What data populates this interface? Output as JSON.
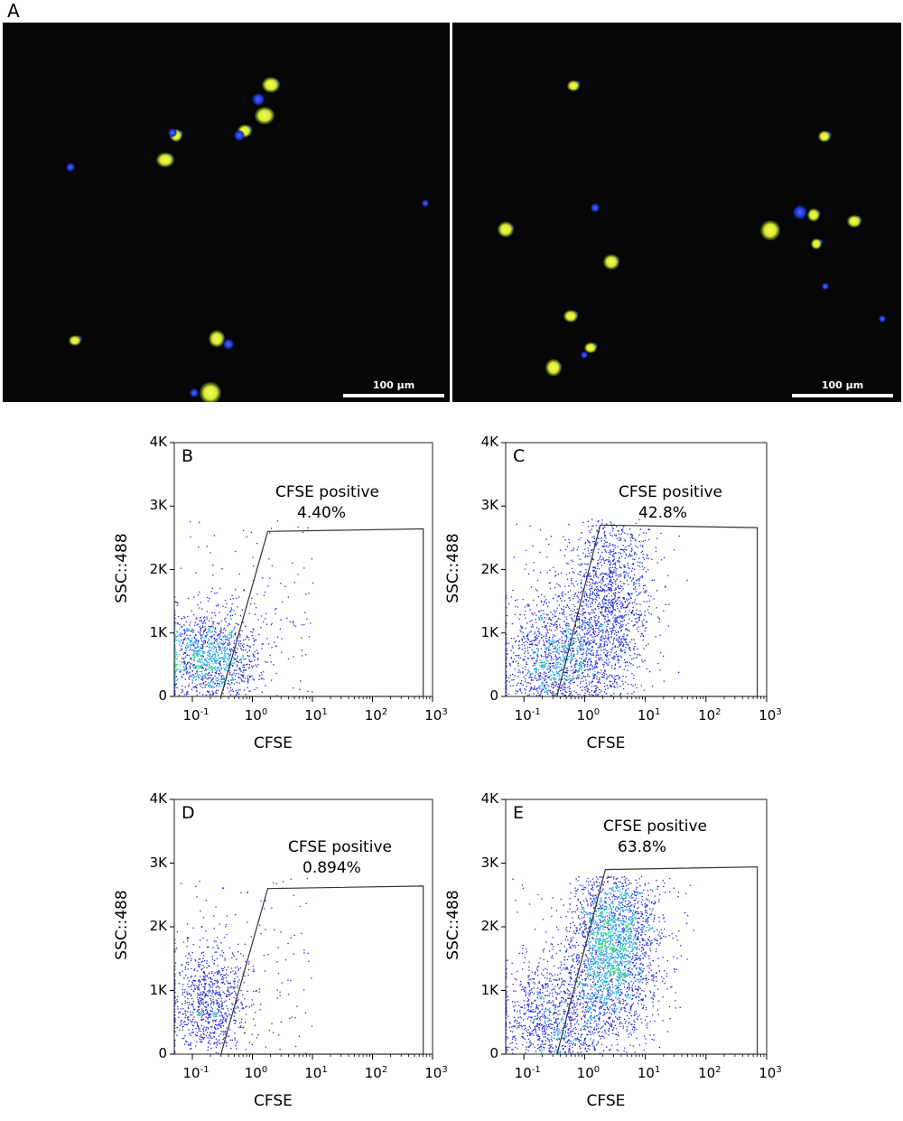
{
  "panel_a": {
    "letter": "A",
    "images": [
      {
        "scale_label": "100 µm"
      },
      {
        "scale_label": "100 µm"
      }
    ]
  },
  "chart_data": [
    {
      "type": "scatter",
      "panel": "B",
      "xlabel": "CFSE",
      "ylabel": "SSC::488",
      "x_scale": "log",
      "xlim": [
        0.05,
        1000
      ],
      "ylim": [
        0,
        4000
      ],
      "x_ticks": [
        {
          "base": "10",
          "exp": "-1"
        },
        {
          "base": "10",
          "exp": "0"
        },
        {
          "base": "10",
          "exp": "1"
        },
        {
          "base": "10",
          "exp": "2"
        },
        {
          "base": "10",
          "exp": "3"
        }
      ],
      "y_ticks": [
        "0",
        "1K",
        "2K",
        "3K",
        "4K"
      ],
      "gate": {
        "name": "CFSE positive",
        "percent": "4.40%",
        "vertices": [
          [
            0.3,
            0
          ],
          [
            1.8,
            2600
          ],
          [
            700,
            2640
          ],
          [
            700,
            0
          ]
        ]
      },
      "clusters": [
        {
          "cx": 0.2,
          "cy": 600,
          "sx": 0.9,
          "sy": 400,
          "n": 1400,
          "dense": true
        }
      ]
    },
    {
      "type": "scatter",
      "panel": "C",
      "xlabel": "CFSE",
      "ylabel": "SSC::488",
      "x_scale": "log",
      "xlim": [
        0.05,
        1000
      ],
      "ylim": [
        0,
        4000
      ],
      "x_ticks": [
        {
          "base": "10",
          "exp": "-1"
        },
        {
          "base": "10",
          "exp": "0"
        },
        {
          "base": "10",
          "exp": "1"
        },
        {
          "base": "10",
          "exp": "2"
        },
        {
          "base": "10",
          "exp": "3"
        }
      ],
      "y_ticks": [
        "0",
        "1K",
        "2K",
        "3K",
        "4K"
      ],
      "gate": {
        "name": "CFSE positive",
        "percent": "42.8%",
        "vertices": [
          [
            0.35,
            0
          ],
          [
            1.8,
            2700
          ],
          [
            700,
            2660
          ],
          [
            700,
            0
          ]
        ]
      },
      "clusters": [
        {
          "cx": 0.35,
          "cy": 500,
          "sx": 0.9,
          "sy": 500,
          "n": 1500,
          "dense": true
        },
        {
          "cx": 2.5,
          "cy": 1500,
          "sx": 0.7,
          "sy": 800,
          "n": 1500,
          "dense": false
        }
      ]
    },
    {
      "type": "scatter",
      "panel": "D",
      "xlabel": "CFSE",
      "ylabel": "SSC::488",
      "x_scale": "log",
      "xlim": [
        0.05,
        1000
      ],
      "ylim": [
        0,
        4000
      ],
      "x_ticks": [
        {
          "base": "10",
          "exp": "-1"
        },
        {
          "base": "10",
          "exp": "0"
        },
        {
          "base": "10",
          "exp": "1"
        },
        {
          "base": "10",
          "exp": "2"
        },
        {
          "base": "10",
          "exp": "3"
        }
      ],
      "y_ticks": [
        "0",
        "1K",
        "2K",
        "3K",
        "4K"
      ],
      "gate": {
        "name": "CFSE positive",
        "percent": "0.894%",
        "vertices": [
          [
            0.3,
            0
          ],
          [
            1.8,
            2600
          ],
          [
            700,
            2640
          ],
          [
            700,
            0
          ]
        ]
      },
      "clusters": [
        {
          "cx": 0.18,
          "cy": 800,
          "sx": 0.7,
          "sy": 450,
          "n": 900,
          "dense": false
        }
      ]
    },
    {
      "type": "scatter",
      "panel": "E",
      "xlabel": "CFSE",
      "ylabel": "SSC::488",
      "x_scale": "log",
      "xlim": [
        0.05,
        1000
      ],
      "ylim": [
        0,
        4000
      ],
      "x_ticks": [
        {
          "base": "10",
          "exp": "-1"
        },
        {
          "base": "10",
          "exp": "0"
        },
        {
          "base": "10",
          "exp": "1"
        },
        {
          "base": "10",
          "exp": "2"
        },
        {
          "base": "10",
          "exp": "3"
        }
      ],
      "y_ticks": [
        "0",
        "1K",
        "2K",
        "3K",
        "4K"
      ],
      "gate": {
        "name": "CFSE positive",
        "percent": "63.8%",
        "vertices": [
          [
            0.35,
            0
          ],
          [
            2.2,
            2900
          ],
          [
            700,
            2940
          ],
          [
            700,
            0
          ]
        ]
      },
      "clusters": [
        {
          "cx": 0.3,
          "cy": 500,
          "sx": 0.9,
          "sy": 500,
          "n": 1200,
          "dense": true
        },
        {
          "cx": 3.0,
          "cy": 1700,
          "sx": 0.8,
          "sy": 700,
          "n": 2600,
          "dense": true
        }
      ]
    }
  ],
  "colors": {
    "cell_yellow": "#d8e832",
    "nucleus_blue": "#1a2ecc",
    "dot_blue": "#1a24d8"
  }
}
